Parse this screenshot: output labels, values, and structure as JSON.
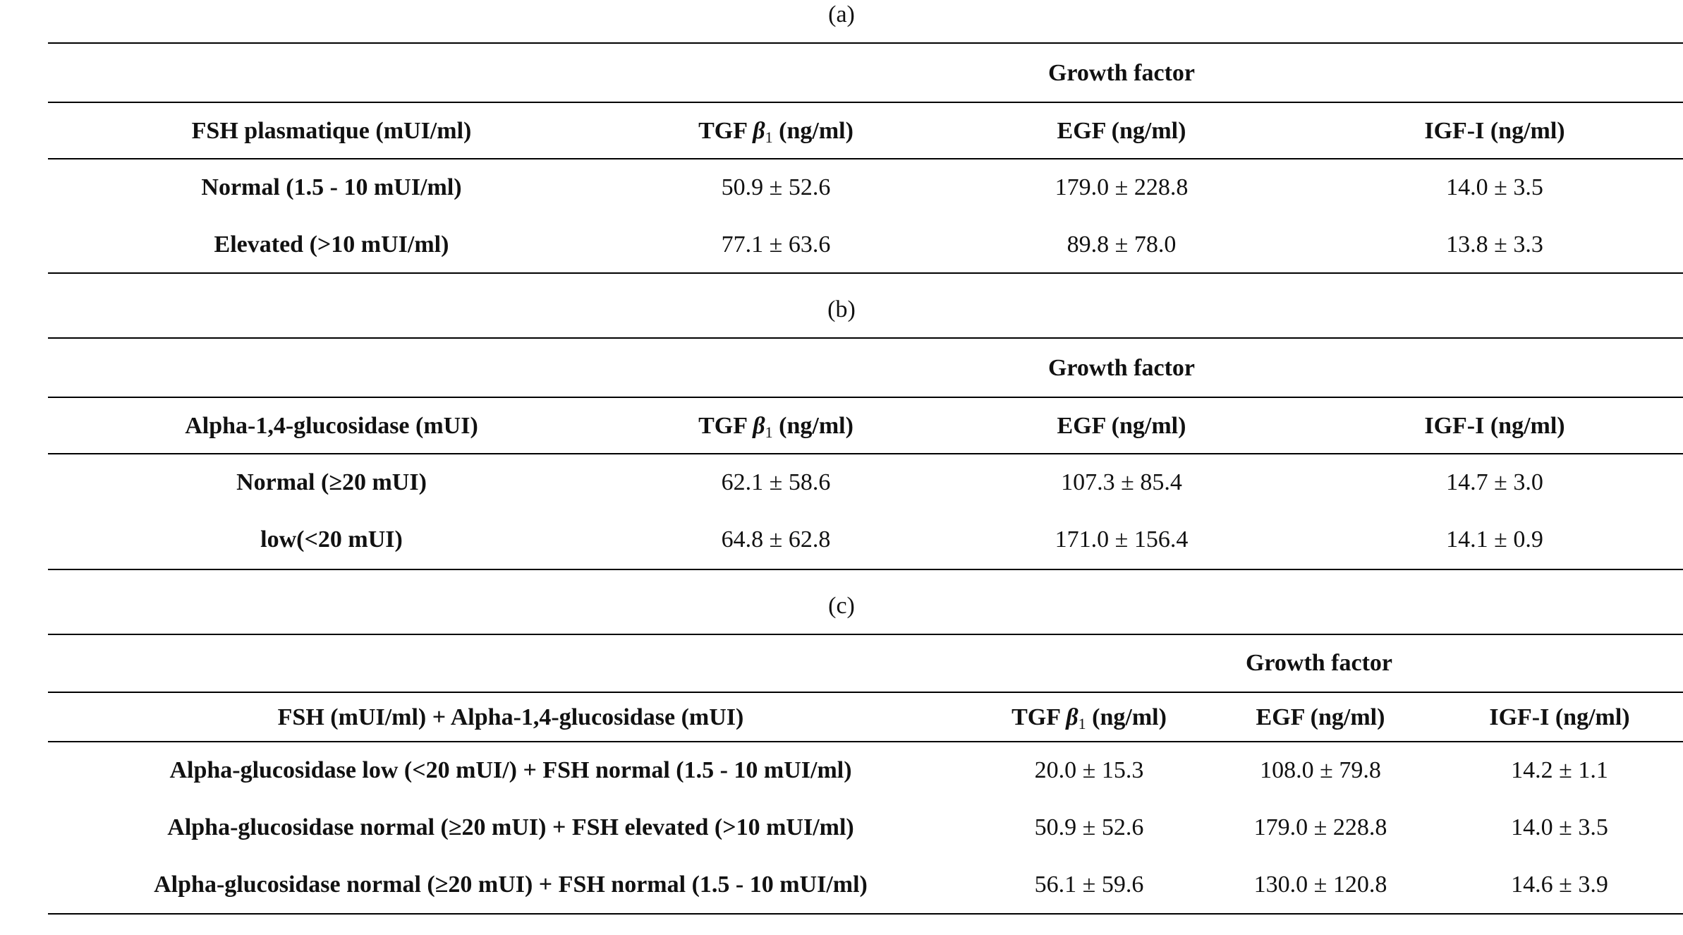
{
  "table_a": {
    "caption": "(a)",
    "group_header": "Growth factor",
    "columns": [
      "FSH plasmatique (mUI/ml)",
      "TGF",
      "EGF (ng/ml)",
      "IGF-I (ng/ml)"
    ],
    "tgf_symbol": "β",
    "tgf_sub": "1",
    "tgf_unit": "(ng/ml)",
    "rows": [
      [
        "Normal (1.5 - 10 mUI/ml)",
        "50.9 ± 52.6",
        "179.0 ± 228.8",
        "14.0 ± 3.5"
      ],
      [
        "Elevated (>10 mUI/ml)",
        "77.1 ± 63.6",
        "89.8 ± 78.0",
        "13.8 ± 3.3"
      ]
    ]
  },
  "table_b": {
    "caption": "(b)",
    "group_header": "Growth factor",
    "columns": [
      "Alpha-1,4-glucosidase (mUI)",
      "TGF",
      "EGF (ng/ml)",
      "IGF-I (ng/ml)"
    ],
    "tgf_symbol": "β",
    "tgf_sub": "1",
    "tgf_unit": "(ng/ml)",
    "rows": [
      [
        "Normal (≥20 mUI)",
        "62.1 ± 58.6",
        "107.3 ± 85.4",
        "14.7 ± 3.0"
      ],
      [
        "low(<20 mUI)",
        "64.8 ± 62.8",
        "171.0 ± 156.4",
        "14.1 ± 0.9"
      ]
    ]
  },
  "table_c": {
    "caption": "(c)",
    "group_header": "Growth factor",
    "columns": [
      "FSH (mUI/ml) + Alpha-1,4-glucosidase (mUI)",
      "TGF",
      "EGF (ng/ml)",
      "IGF-I (ng/ml)"
    ],
    "tgf_symbol": "β",
    "tgf_sub": "1",
    "tgf_unit": "(ng/ml)",
    "rows": [
      [
        "Alpha-glucosidase low (<20 mUI/) + FSH normal (1.5 - 10 mUI/ml)",
        "20.0 ± 15.3",
        "108.0 ± 79.8",
        "14.2 ± 1.1"
      ],
      [
        "Alpha-glucosidase normal (≥20 mUI) + FSH elevated (>10 mUI/ml)",
        "50.9 ± 52.6",
        "179.0 ± 228.8",
        "14.0 ± 3.5"
      ],
      [
        "Alpha-glucosidase normal (≥20 mUI) + FSH normal (1.5 - 10 mUI/ml)",
        "56.1 ± 59.6",
        "130.0 ± 120.8",
        "14.6 ± 3.9"
      ]
    ]
  }
}
